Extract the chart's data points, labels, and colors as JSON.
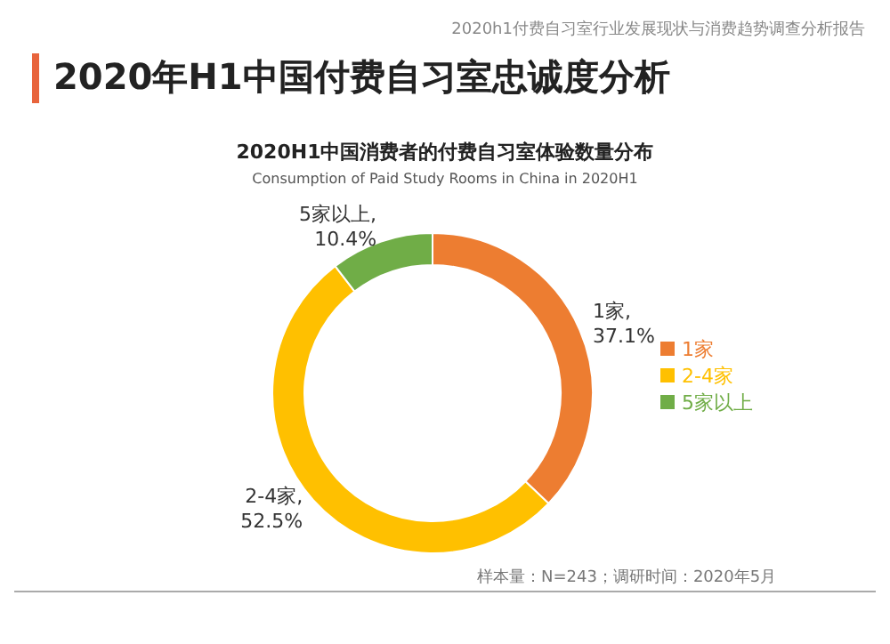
{
  "chart_data": {
    "type": "donut",
    "title": "2020年H1中国付费自习室忠诚度分析",
    "subtitle": "2020H1中国消费者的付费自习室体验数量分布",
    "annotations": [
      "2020h1付费自习室行业发展现状与消费趋势调查分析报告",
      "Consumption of Paid Study Rooms in China in 2020H1",
      "样本量：N=243；调研时间：2020年5月"
    ],
    "categories": [
      "1家",
      "2-4家",
      "5家以上"
    ],
    "values": [
      37.1,
      52.5,
      10.4
    ],
    "value_labels": [
      "1家,\n37.1%",
      "2-4家,\n52.5%",
      "5家以上,\n10.4%"
    ],
    "colors": [
      "#ed7d31",
      "#ffc000",
      "#70ad47"
    ],
    "legend": "right"
  }
}
